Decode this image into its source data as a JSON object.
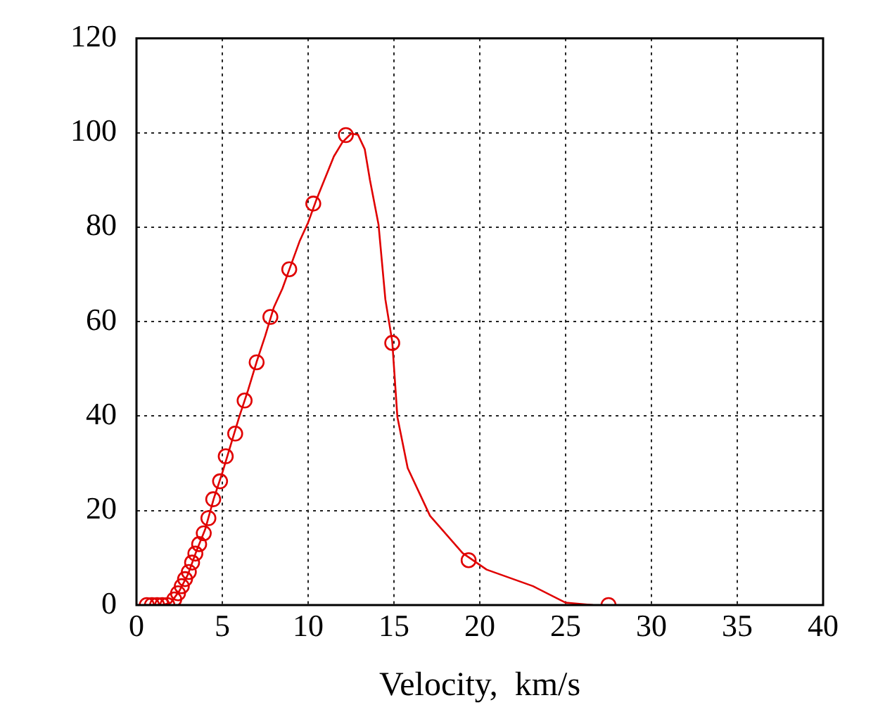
{
  "chart_data": {
    "type": "line",
    "xlabel": "Velocity,  km/s",
    "xlim": [
      0,
      40
    ],
    "xticks": [
      0,
      5,
      10,
      15,
      20,
      25,
      30,
      35,
      40
    ],
    "ylim": [
      0,
      120
    ],
    "yticks": [
      0,
      20,
      40,
      60,
      80,
      100,
      120
    ],
    "grid": true,
    "legend": false,
    "line_style": "solid",
    "series": [
      {
        "marker": "none",
        "color": "#e00000",
        "x": [
          0.5,
          1.5,
          2,
          2.5,
          3,
          3.5,
          4,
          4.5,
          5,
          5.5,
          6,
          6.5,
          7,
          7.5,
          8,
          8.5,
          9,
          9.5,
          10,
          10.5,
          11,
          11.5,
          12,
          12.5,
          12.9,
          13.3,
          13.6,
          14.1,
          14.5,
          14.9,
          15.2,
          15.8,
          17.1,
          19,
          20.4,
          23.1,
          25,
          26.6
        ],
        "values": [
          0,
          0,
          0.5,
          3,
          6.5,
          11.5,
          16,
          22.5,
          28,
          34,
          40,
          45.5,
          51.5,
          57,
          63,
          67,
          72,
          77,
          81,
          86,
          90.5,
          95,
          98,
          99.8,
          99.6,
          96.5,
          90,
          80.6,
          64.7,
          55.8,
          39.8,
          29,
          18.9,
          11,
          7.5,
          4,
          0.5,
          0
        ]
      },
      {
        "type": "scatter",
        "marker": "circle",
        "color": "#e00000",
        "x": [
          0.6,
          0.9,
          1.2,
          1.5,
          1.8,
          2.2,
          2.42,
          2.64,
          2.83,
          3.05,
          3.24,
          3.43,
          3.65,
          3.92,
          4.19,
          4.47,
          4.87,
          5.2,
          5.75,
          6.3,
          7.0,
          7.8,
          8.9,
          10.3,
          12.2,
          14.9,
          19.35,
          27.5
        ],
        "values": [
          0,
          0,
          0,
          0,
          0,
          1.2,
          2.5,
          4,
          5.5,
          7,
          9,
          10.9,
          12.9,
          15.2,
          18.4,
          22.4,
          26.2,
          31.5,
          36.3,
          43.3,
          51.4,
          61,
          71.1,
          85,
          99.5,
          55.5,
          9.5,
          0
        ]
      }
    ]
  }
}
